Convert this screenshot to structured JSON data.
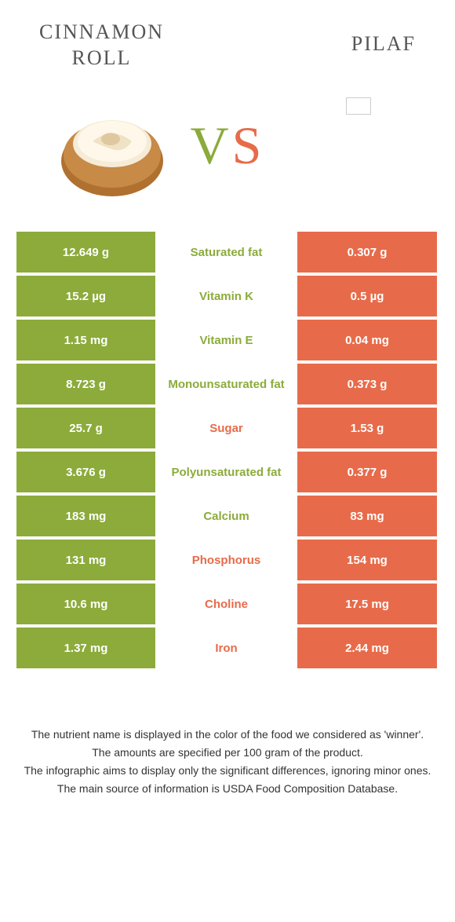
{
  "colors": {
    "left": "#8cab3b",
    "right": "#e76b4a",
    "vs_v": "#8cab3b",
    "vs_s": "#e76b4a"
  },
  "left_title": "Cinnamon roll",
  "right_title": "Pilaf",
  "vs_v": "V",
  "vs_s": "S",
  "rows": [
    {
      "left": "12.649 g",
      "mid": "Saturated fat",
      "right": "0.307 g",
      "winner": "left"
    },
    {
      "left": "15.2 µg",
      "mid": "Vitamin K",
      "right": "0.5 µg",
      "winner": "left"
    },
    {
      "left": "1.15 mg",
      "mid": "Vitamin E",
      "right": "0.04 mg",
      "winner": "left"
    },
    {
      "left": "8.723 g",
      "mid": "Monounsaturated fat",
      "right": "0.373 g",
      "winner": "left"
    },
    {
      "left": "25.7 g",
      "mid": "Sugar",
      "right": "1.53 g",
      "winner": "right"
    },
    {
      "left": "3.676 g",
      "mid": "Polyunsaturated fat",
      "right": "0.377 g",
      "winner": "left"
    },
    {
      "left": "183 mg",
      "mid": "Calcium",
      "right": "83 mg",
      "winner": "left"
    },
    {
      "left": "131 mg",
      "mid": "Phosphorus",
      "right": "154 mg",
      "winner": "right"
    },
    {
      "left": "10.6 mg",
      "mid": "Choline",
      "right": "17.5 mg",
      "winner": "right"
    },
    {
      "left": "1.37 mg",
      "mid": "Iron",
      "right": "2.44 mg",
      "winner": "right"
    }
  ],
  "footer": [
    "The nutrient name is displayed in the color of the food we considered as 'winner'.",
    "The amounts are specified per 100 gram of the product.",
    "The infographic aims to display only the significant differences, ignoring minor ones.",
    "The main source of information is USDA Food Composition Database."
  ]
}
